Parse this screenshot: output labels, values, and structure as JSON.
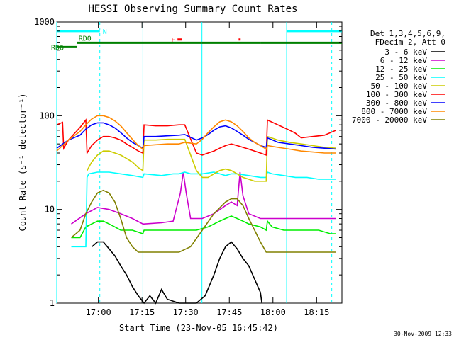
{
  "chart_data": {
    "type": "line",
    "title": "HESSI Observing Summary Count Rates",
    "xlabel": "Start Time (23-Nov-05 16:45:42)",
    "ylabel": "Count Rate (s⁻¹ detector⁻¹)",
    "ylog": true,
    "ylim": [
      1,
      1000
    ],
    "x_units": "minutes after 16:45:42",
    "xlim": [
      0,
      98
    ],
    "xticks": [
      {
        "x": 14.3,
        "label": "17:00"
      },
      {
        "x": 29.3,
        "label": "17:15"
      },
      {
        "x": 44.3,
        "label": "17:30"
      },
      {
        "x": 59.3,
        "label": "17:45"
      },
      {
        "x": 74.3,
        "label": "18:00"
      },
      {
        "x": 89.3,
        "label": "18:15"
      }
    ],
    "yticks": [
      {
        "y": 1,
        "label": "1"
      },
      {
        "y": 10,
        "label": "10"
      },
      {
        "y": 100,
        "label": "100"
      },
      {
        "y": 1000,
        "label": "1000"
      }
    ],
    "legend_header": [
      "Det 1,3,4,5,6,9,",
      "FDecim 2, Att 0"
    ],
    "legend_placement": "right",
    "series": [
      {
        "name": "3 - 6 keV",
        "color": "#000000",
        "x": [
          12.1,
          14,
          16,
          18,
          20,
          22,
          24,
          26,
          28,
          30,
          32,
          34,
          36,
          38,
          42,
          45,
          48,
          51,
          54,
          56,
          58,
          60,
          62,
          64,
          66,
          68,
          70,
          70.5
        ],
        "y": [
          4,
          4.5,
          4.5,
          3.8,
          3.2,
          2.5,
          2,
          1.5,
          1.2,
          1,
          1.2,
          1,
          1.4,
          1.1,
          1,
          1,
          1,
          1.2,
          2,
          3,
          4,
          4.5,
          3.8,
          3,
          2.5,
          1.8,
          1.3,
          1
        ]
      },
      {
        "name": "6 - 12 keV",
        "color": "#cc00cc",
        "x": [
          5,
          10,
          14,
          18,
          22,
          26,
          29.6,
          30,
          36,
          40,
          42.5,
          43.5,
          44.5,
          46,
          50,
          54,
          58,
          60,
          62,
          63,
          64,
          66,
          70,
          72,
          72.4,
          74,
          78,
          82,
          86,
          90,
          94,
          96
        ],
        "y": [
          7,
          9,
          10.5,
          10,
          9,
          8,
          7,
          7,
          7.2,
          7.5,
          15,
          25,
          15,
          8,
          8,
          9,
          11,
          12,
          11,
          25,
          14,
          9,
          8,
          8,
          8,
          8,
          8,
          8,
          8,
          8,
          8,
          8
        ]
      },
      {
        "name": "12 - 25 keV",
        "color": "#00ee00",
        "x": [
          5,
          8,
          10,
          12,
          14,
          16,
          18,
          20,
          22,
          26,
          29.6,
          30,
          36,
          42,
          48,
          52,
          56,
          58,
          60,
          62,
          64,
          66,
          70,
          72,
          72.4,
          74,
          78,
          82,
          86,
          90,
          94,
          96
        ],
        "y": [
          5,
          5,
          6.5,
          7,
          7.5,
          7.5,
          7,
          6.5,
          6,
          6,
          5.5,
          6,
          6,
          6,
          6,
          6.5,
          7.5,
          8,
          8.5,
          8,
          7.5,
          7,
          6.5,
          6,
          7.5,
          6.5,
          6,
          6,
          6,
          6,
          5.5,
          5.5
        ]
      },
      {
        "name": "25 - 50 keV",
        "color": "#00ffff",
        "x": [
          5,
          10,
          10.4,
          11,
          14,
          18,
          22,
          26,
          29.6,
          30,
          36,
          40,
          42,
          44,
          46,
          50,
          54,
          56,
          58,
          60,
          62,
          66,
          70,
          72,
          72.4,
          74,
          78,
          82,
          86,
          90,
          94,
          96
        ],
        "y": [
          4,
          4,
          22,
          24,
          25,
          25,
          24,
          23,
          22,
          24,
          23,
          24,
          24,
          25,
          24,
          24,
          25,
          24,
          23,
          24,
          24,
          23,
          22,
          22,
          25,
          24,
          23,
          22,
          22,
          21,
          21,
          21
        ]
      },
      {
        "name": "50 - 100 keV",
        "color": "#cccc00",
        "x": [
          10.4,
          12,
          14,
          16,
          18,
          20,
          22,
          24,
          26,
          28,
          29.6,
          30,
          34,
          38,
          42,
          44,
          48,
          50,
          52,
          54,
          56,
          58,
          60,
          62,
          64,
          66,
          68,
          70,
          72,
          72.4,
          76,
          80,
          84,
          88,
          92,
          96
        ],
        "y": [
          26,
          32,
          38,
          42,
          42,
          40,
          38,
          35,
          32,
          28,
          26,
          55,
          55,
          56,
          56,
          56,
          26,
          22,
          22,
          24,
          26,
          27,
          26,
          24,
          22,
          21,
          20,
          20,
          20,
          60,
          55,
          52,
          50,
          48,
          46,
          45
        ]
      },
      {
        "name": "100 - 300 keV",
        "color": "#ff0000",
        "x": [
          0,
          2,
          2.4,
          4,
          8,
          10,
          10.4,
          12,
          14,
          16,
          18,
          20,
          22,
          24,
          26,
          28,
          29.6,
          30,
          34,
          38,
          42,
          44,
          48,
          50,
          52,
          54,
          56,
          58,
          60,
          62,
          64,
          66,
          68,
          70,
          72,
          72.4,
          76,
          80,
          82,
          84,
          88,
          92,
          96
        ],
        "y": [
          80,
          85,
          45,
          55,
          75,
          90,
          40,
          48,
          55,
          60,
          60,
          58,
          55,
          50,
          46,
          42,
          40,
          80,
          78,
          78,
          80,
          80,
          40,
          38,
          40,
          42,
          45,
          48,
          50,
          48,
          46,
          44,
          42,
          40,
          38,
          90,
          80,
          70,
          65,
          58,
          60,
          62,
          70
        ]
      },
      {
        "name": "300 - 800 keV",
        "color": "#0000ff",
        "x": [
          0,
          4,
          8,
          10,
          12,
          14,
          16,
          18,
          20,
          22,
          24,
          26,
          28,
          29.6,
          30,
          34,
          38,
          42,
          44,
          48,
          50,
          52,
          54,
          56,
          58,
          60,
          62,
          64,
          66,
          68,
          70,
          72,
          72.4,
          76,
          80,
          84,
          88,
          92,
          96
        ],
        "y": [
          45,
          55,
          62,
          72,
          80,
          84,
          84,
          80,
          74,
          66,
          58,
          52,
          48,
          45,
          60,
          60,
          61,
          62,
          63,
          55,
          58,
          63,
          70,
          76,
          78,
          74,
          68,
          62,
          56,
          52,
          48,
          46,
          58,
          52,
          50,
          48,
          46,
          45,
          44
        ]
      },
      {
        "name": "800 - 7000 keV",
        "color": "#ff8800",
        "x": [
          0,
          4,
          8,
          10,
          12,
          14,
          16,
          18,
          20,
          22,
          24,
          26,
          28,
          29.6,
          30,
          34,
          38,
          42,
          44,
          48,
          50,
          52,
          54,
          56,
          58,
          60,
          62,
          64,
          66,
          68,
          70,
          72,
          72.4,
          76,
          80,
          84,
          88,
          92,
          96
        ],
        "y": [
          42,
          55,
          68,
          80,
          92,
          100,
          100,
          96,
          88,
          78,
          66,
          56,
          48,
          44,
          48,
          49,
          50,
          50,
          52,
          50,
          56,
          66,
          76,
          86,
          90,
          86,
          78,
          68,
          58,
          52,
          48,
          44,
          48,
          46,
          44,
          42,
          41,
          40,
          40
        ]
      },
      {
        "name": "7000 - 20000 keV",
        "color": "#808000",
        "x": [
          5,
          8,
          10,
          12,
          14,
          16,
          18,
          20,
          22,
          24,
          26,
          28,
          30,
          34,
          38,
          42,
          46,
          50,
          54,
          58,
          60,
          62,
          64,
          66,
          68,
          70,
          72,
          74,
          78,
          82,
          86,
          90,
          94,
          96
        ],
        "y": [
          5,
          6,
          9,
          12,
          15,
          16,
          15,
          12,
          8,
          5,
          4,
          3.5,
          3.5,
          3.5,
          3.5,
          3.5,
          4,
          6,
          9,
          12,
          13,
          13,
          11,
          8,
          6,
          4.5,
          3.5,
          3.5,
          3.5,
          3.5,
          3.5,
          3.5,
          3.5,
          3.5
        ]
      }
    ],
    "vertical_markers": [
      {
        "x": 0,
        "style": "solid"
      },
      {
        "x": 29.6,
        "style": "solid"
      },
      {
        "x": 14.8,
        "style": "dashed"
      },
      {
        "x": 49.9,
        "style": "solid"
      },
      {
        "x": 79.0,
        "style": "solid"
      },
      {
        "x": 94.5,
        "style": "dashed"
      }
    ],
    "annotation_bars": [
      {
        "label": "N",
        "color": "#00ffff",
        "segments": [
          [
            0,
            14.8
          ],
          [
            79.0,
            98
          ]
        ],
        "level": 800
      },
      {
        "label": "F",
        "color": "#ff0000",
        "segments": [
          [
            41.5,
            43.0
          ],
          [
            62.5,
            63.2
          ]
        ],
        "level": 650
      },
      {
        "label": "RD0",
        "color": "#008000",
        "segments": [
          [
            7,
            29.6
          ],
          [
            29.6,
            49.9
          ],
          [
            49.9,
            70.1
          ],
          [
            70.1,
            98
          ]
        ],
        "level": 600
      },
      {
        "label": "RD6",
        "color": "#008000",
        "segments": [
          [
            0,
            7
          ]
        ],
        "level": 540
      }
    ],
    "timestamp": "30-Nov-2009 12:33"
  }
}
